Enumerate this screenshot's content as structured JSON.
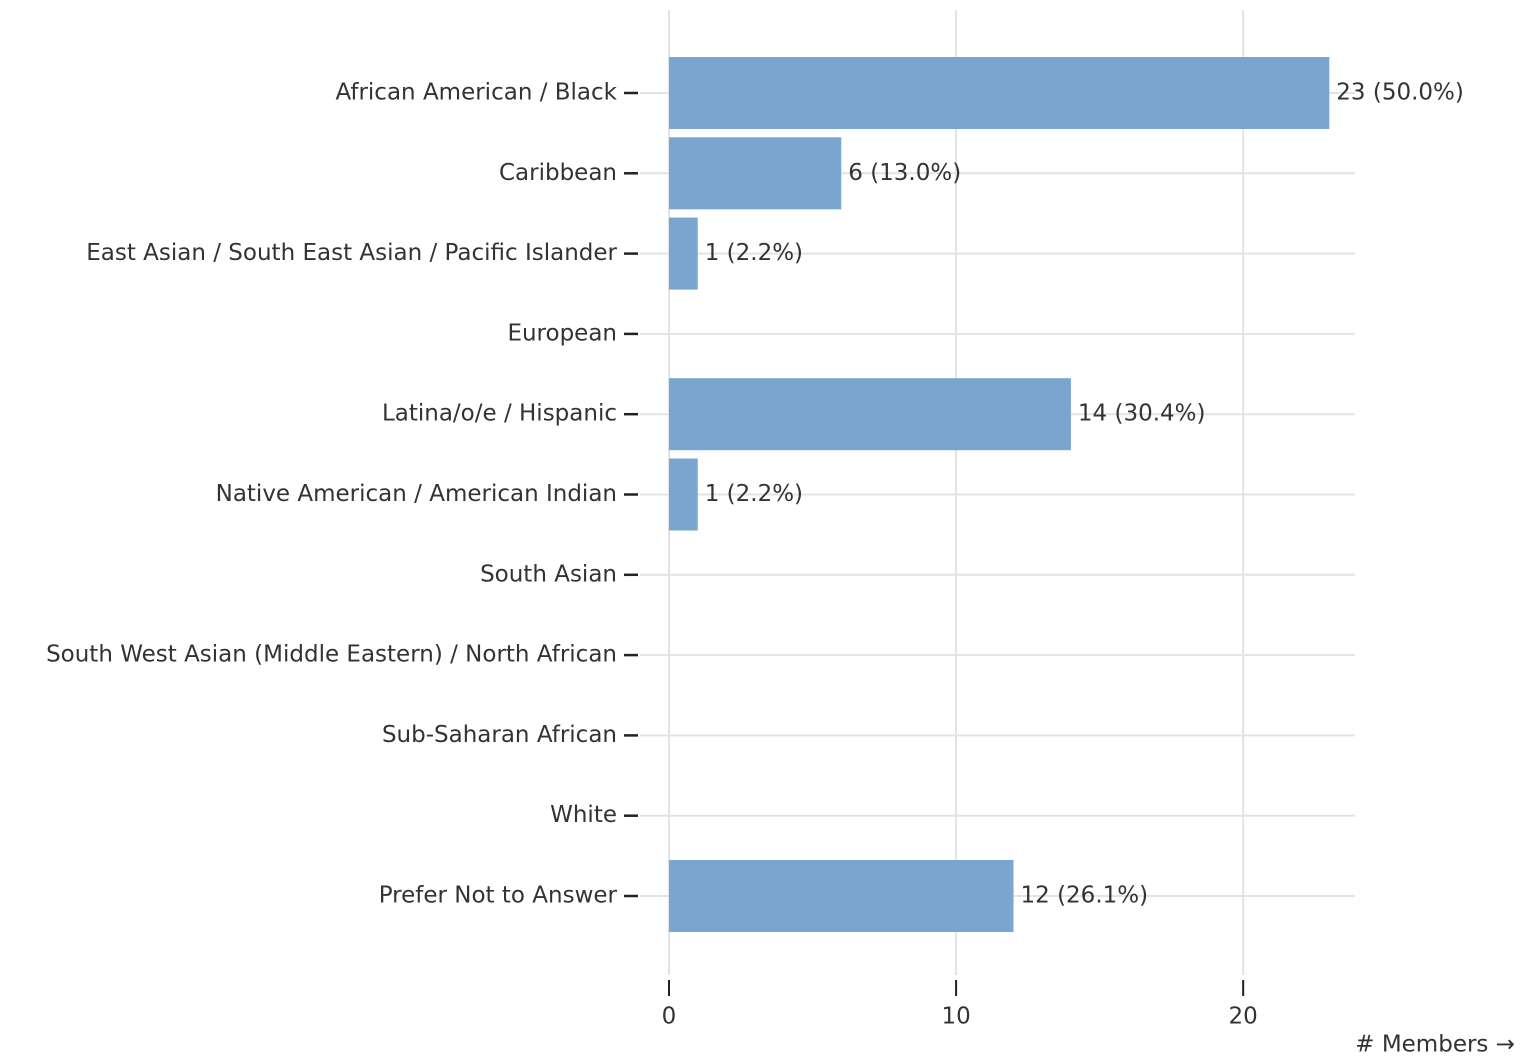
{
  "chart_data": {
    "type": "bar",
    "orientation": "horizontal",
    "categories": [
      "African American / Black",
      "Caribbean",
      "East Asian / South East Asian / Pacific Islander",
      "European",
      "Latina/o/e / Hispanic",
      "Native American / American Indian",
      "South Asian",
      "South West Asian (Middle Eastern) / North African",
      "Sub-Saharan African",
      "White",
      "Prefer Not to Answer"
    ],
    "values": [
      23,
      6,
      1,
      0,
      14,
      1,
      0,
      0,
      0,
      0,
      12
    ],
    "value_labels": [
      "23 (50.0%)",
      "6 (13.0%)",
      "1 (2.2%)",
      null,
      "14 (30.4%)",
      "1 (2.2%)",
      null,
      null,
      null,
      null,
      "12 (26.1%)"
    ],
    "color": "#79a5cf",
    "x_label": "# Members →",
    "xlim": [
      0,
      24
    ],
    "xticks": [
      0,
      10,
      20
    ],
    "grid": true
  }
}
